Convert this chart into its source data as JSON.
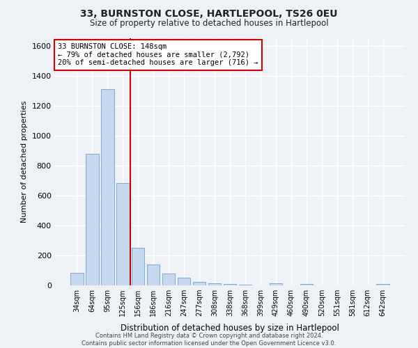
{
  "title": "33, BURNSTON CLOSE, HARTLEPOOL, TS26 0EU",
  "subtitle": "Size of property relative to detached houses in Hartlepool",
  "xlabel": "Distribution of detached houses by size in Hartlepool",
  "ylabel": "Number of detached properties",
  "bar_labels": [
    "34sqm",
    "64sqm",
    "95sqm",
    "125sqm",
    "156sqm",
    "186sqm",
    "216sqm",
    "247sqm",
    "277sqm",
    "308sqm",
    "338sqm",
    "368sqm",
    "399sqm",
    "429sqm",
    "460sqm",
    "490sqm",
    "520sqm",
    "551sqm",
    "581sqm",
    "612sqm",
    "642sqm"
  ],
  "bar_values": [
    85,
    880,
    1310,
    685,
    250,
    140,
    80,
    50,
    25,
    15,
    10,
    5,
    0,
    15,
    0,
    10,
    0,
    0,
    0,
    0,
    10
  ],
  "bar_color": "#c5d8ef",
  "bar_edge_color": "#7aadd4",
  "vline_index": 4,
  "vline_color": "#cc0000",
  "annotation_title": "33 BURNSTON CLOSE: 148sqm",
  "annotation_line1": "← 79% of detached houses are smaller (2,792)",
  "annotation_line2": "20% of semi-detached houses are larger (716) →",
  "annotation_box_color": "#cc0000",
  "ylim": [
    0,
    1650
  ],
  "yticks": [
    0,
    200,
    400,
    600,
    800,
    1000,
    1200,
    1400,
    1600
  ],
  "footer_line1": "Contains HM Land Registry data © Crown copyright and database right 2024.",
  "footer_line2": "Contains public sector information licensed under the Open Government Licence v3.0.",
  "bg_color": "#eef2f7"
}
